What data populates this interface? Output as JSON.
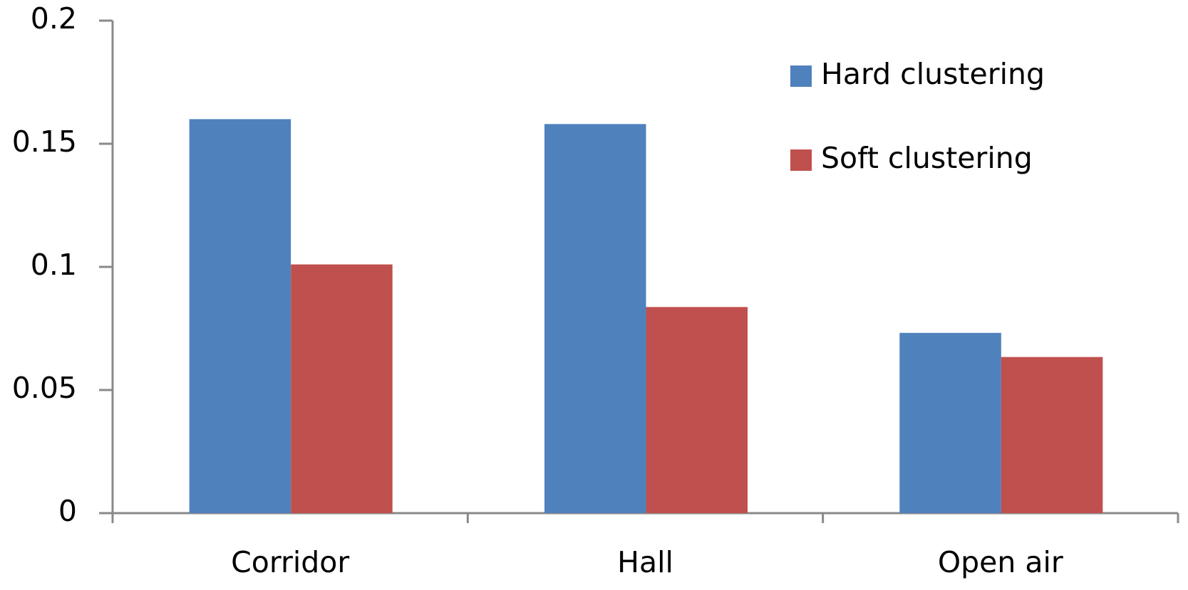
{
  "chart_data": {
    "type": "bar",
    "categories": [
      "Corridor",
      "Hall",
      "Open air"
    ],
    "series": [
      {
        "name": "Hard clustering",
        "color": "#4f81bd",
        "values": [
          0.16,
          0.158,
          0.0732
        ]
      },
      {
        "name": "Soft clustering",
        "color": "#c0504d",
        "values": [
          0.101,
          0.0837,
          0.0634
        ]
      }
    ],
    "ylim": [
      0,
      0.2
    ],
    "yticks": [
      0,
      0.05,
      0.1,
      0.15,
      0.2
    ],
    "grid": false,
    "legend": "top-right"
  }
}
